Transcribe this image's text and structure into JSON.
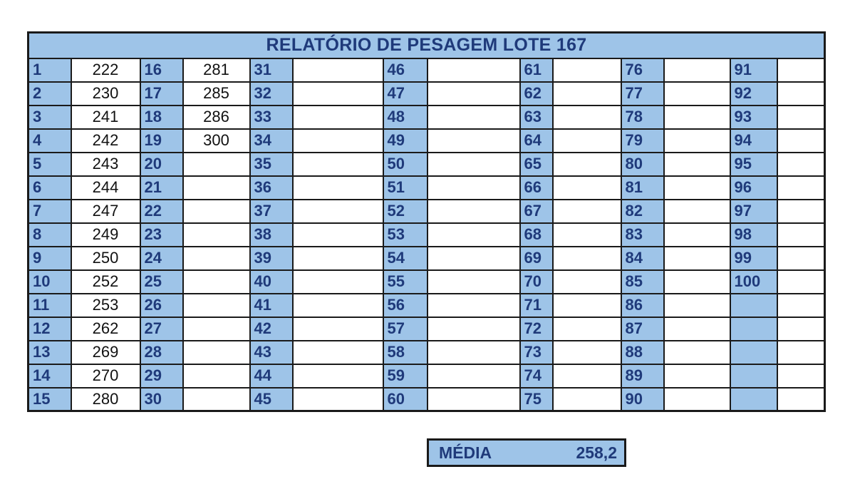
{
  "report": {
    "title": "RELATÓRIO DE PESAGEM LOTE 167",
    "columns": [
      {
        "numbers": [
          "1",
          "2",
          "3",
          "4",
          "5",
          "6",
          "7",
          "8",
          "9",
          "10",
          "11",
          "12",
          "13",
          "14",
          "15"
        ],
        "values": [
          "222",
          "230",
          "241",
          "242",
          "243",
          "244",
          "247",
          "249",
          "250",
          "252",
          "253",
          "262",
          "269",
          "270",
          "280"
        ]
      },
      {
        "numbers": [
          "16",
          "17",
          "18",
          "19",
          "20",
          "21",
          "22",
          "23",
          "24",
          "25",
          "26",
          "27",
          "28",
          "29",
          "30"
        ],
        "values": [
          "281",
          "285",
          "286",
          "300",
          "",
          "",
          "",
          "",
          "",
          "",
          "",
          "",
          "",
          "",
          ""
        ]
      },
      {
        "numbers": [
          "31",
          "32",
          "33",
          "34",
          "35",
          "36",
          "37",
          "38",
          "39",
          "40",
          "41",
          "42",
          "43",
          "44",
          "45"
        ],
        "values": [
          "",
          "",
          "",
          "",
          "",
          "",
          "",
          "",
          "",
          "",
          "",
          "",
          "",
          "",
          ""
        ]
      },
      {
        "numbers": [
          "46",
          "47",
          "48",
          "49",
          "50",
          "51",
          "52",
          "53",
          "54",
          "55",
          "56",
          "57",
          "58",
          "59",
          "60"
        ],
        "values": [
          "",
          "",
          "",
          "",
          "",
          "",
          "",
          "",
          "",
          "",
          "",
          "",
          "",
          "",
          ""
        ]
      },
      {
        "numbers": [
          "61",
          "62",
          "63",
          "64",
          "65",
          "66",
          "67",
          "68",
          "69",
          "70",
          "71",
          "72",
          "73",
          "74",
          "75"
        ],
        "values": [
          "",
          "",
          "",
          "",
          "",
          "",
          "",
          "",
          "",
          "",
          "",
          "",
          "",
          "",
          ""
        ]
      },
      {
        "numbers": [
          "76",
          "77",
          "78",
          "79",
          "80",
          "81",
          "82",
          "83",
          "84",
          "85",
          "86",
          "87",
          "88",
          "89",
          "90"
        ],
        "values": [
          "",
          "",
          "",
          "",
          "",
          "",
          "",
          "",
          "",
          "",
          "",
          "",
          "",
          "",
          ""
        ]
      },
      {
        "numbers": [
          "91",
          "92",
          "93",
          "94",
          "95",
          "96",
          "97",
          "98",
          "99",
          "100",
          "",
          "",
          "",
          "",
          ""
        ],
        "values": [
          "",
          "",
          "",
          "",
          "",
          "",
          "",
          "",
          "",
          "",
          "",
          "",
          "",
          "",
          ""
        ]
      }
    ]
  },
  "summary": {
    "label": "MÉDIA",
    "value": "258,2"
  },
  "colors": {
    "header_fill": "#9ec4e8",
    "header_text": "#1f3a7a",
    "border": "#1a1a1a"
  }
}
